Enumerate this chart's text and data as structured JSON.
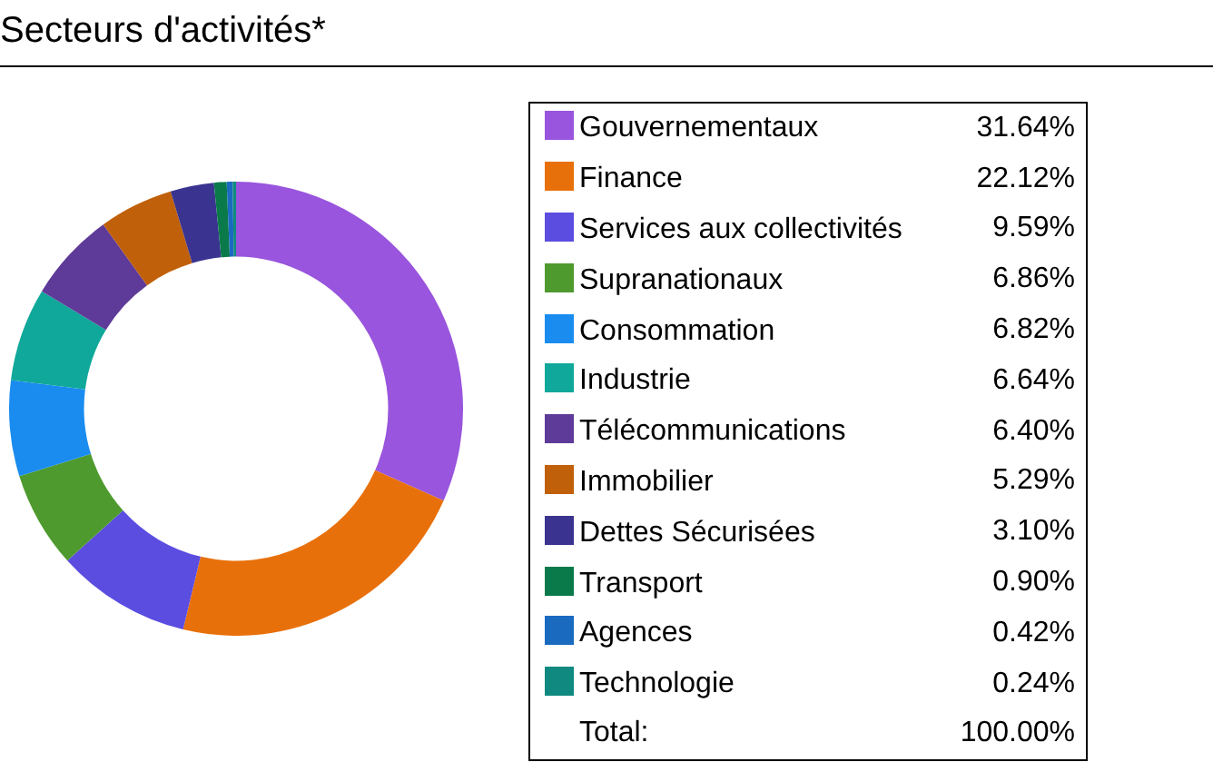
{
  "chart_data": {
    "type": "donut",
    "title": "Secteurs d'activités*",
    "categories": [
      "Gouvernementaux",
      "Finance",
      "Services aux collectivités",
      "Supranationaux",
      "Consommation",
      "Industrie",
      "Télécommunications",
      "Immobilier",
      "Dettes Sécurisées",
      "Transport",
      "Agences",
      "Technologie"
    ],
    "values": [
      31.64,
      22.12,
      9.59,
      6.86,
      6.82,
      6.64,
      6.4,
      5.29,
      3.1,
      0.9,
      0.42,
      0.24
    ],
    "value_labels": [
      "31.64%",
      "22.12%",
      "9.59%",
      "6.86%",
      "6.82%",
      "6.64%",
      "6.40%",
      "5.29%",
      "3.10%",
      "0.90%",
      "0.42%",
      "0.24%"
    ],
    "colors": [
      "#9955dd",
      "#e8700a",
      "#5b4de0",
      "#4f9a2e",
      "#1a8cf0",
      "#10a89a",
      "#5e3a99",
      "#c0600a",
      "#3a3490",
      "#0a7a4a",
      "#1a6ac0",
      "#108a80"
    ],
    "legend": "right",
    "annotations": [
      "Total:",
      "100.00%"
    ]
  }
}
